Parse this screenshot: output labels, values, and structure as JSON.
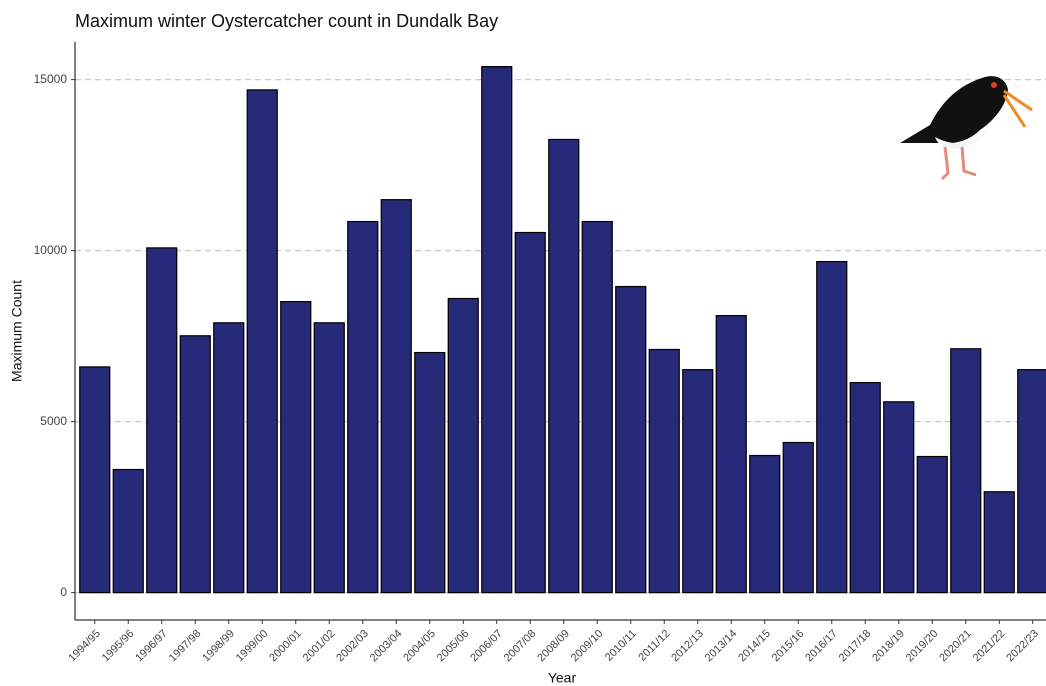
{
  "chart_data": {
    "type": "bar",
    "title": "Maximum winter Oystercatcher count in Dundalk Bay",
    "x_label": "Year",
    "y_label": "Maximum Count",
    "categories": [
      "1994/95",
      "1995/96",
      "1996/97",
      "1997/98",
      "1998/99",
      "1999/00",
      "2000/01",
      "2001/02",
      "2002/03",
      "2003/04",
      "2004/05",
      "2005/06",
      "2006/07",
      "2007/08",
      "2008/09",
      "2009/10",
      "2010/11",
      "2011/12",
      "2012/13",
      "2013/14",
      "2014/15",
      "2015/16",
      "2016/17",
      "2017/18",
      "2018/19",
      "2019/20",
      "2020/21",
      "2021/22",
      "2022/23"
    ],
    "values": [
      6600,
      3600,
      10080,
      7510,
      7890,
      14700,
      8510,
      7890,
      10850,
      11490,
      7020,
      8600,
      15380,
      10530,
      13250,
      10850,
      8950,
      7110,
      6520,
      8100,
      4010,
      4390,
      9680,
      6140,
      5580,
      3980,
      7130,
      2950,
      6520
    ],
    "color": "#272a78",
    "ylim": [
      -800,
      16100
    ],
    "yticks": [
      0,
      5000,
      10000,
      15000
    ],
    "grid": true
  }
}
